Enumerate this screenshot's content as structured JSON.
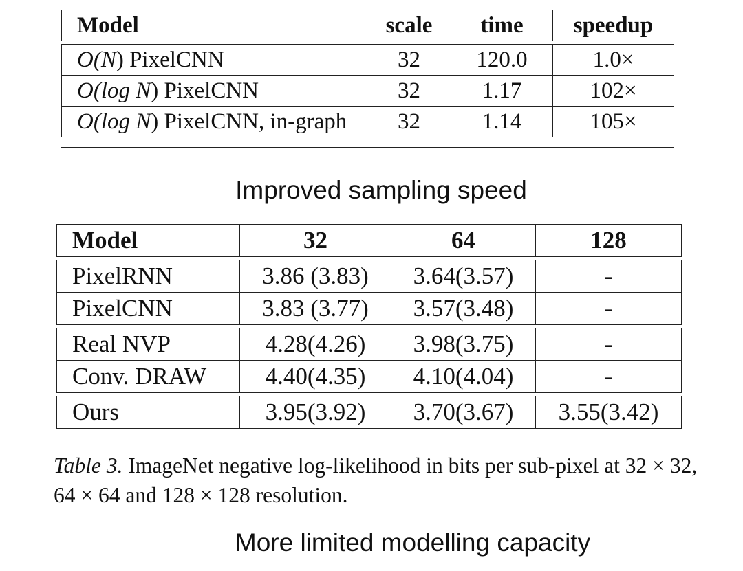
{
  "speed_table": {
    "headers": [
      "Model",
      "scale",
      "time",
      "speedup"
    ],
    "rows": [
      {
        "model_prefix": "O(",
        "model_var": "N",
        "model_suffix": ") PixelCNN",
        "scale": "32",
        "time": "120.0",
        "speedup": "1.0×"
      },
      {
        "model_prefix": "O(log ",
        "model_var": "N",
        "model_suffix": ") PixelCNN",
        "scale": "32",
        "time": "1.17",
        "speedup": "102×"
      },
      {
        "model_prefix": "O(log ",
        "model_var": "N",
        "model_suffix": ") PixelCNN, in-graph",
        "scale": "32",
        "time": "1.14",
        "speedup": "105×"
      }
    ]
  },
  "caption_speed": "Improved sampling speed",
  "nll_table": {
    "headers": [
      "Model",
      "32",
      "64",
      "128"
    ],
    "groups": [
      [
        {
          "model": "PixelRNN",
          "v32": "3.86 (3.83)",
          "v64": "3.64(3.57)",
          "v128": "-"
        },
        {
          "model": "PixelCNN",
          "v32": "3.83 (3.77)",
          "v64": "3.57(3.48)",
          "v128": "-"
        }
      ],
      [
        {
          "model": "Real NVP",
          "v32": "4.28(4.26)",
          "v64": "3.98(3.75)",
          "v128": "-"
        },
        {
          "model": "Conv. DRAW",
          "v32": "4.40(4.35)",
          "v64": "4.10(4.04)",
          "v128": "-"
        }
      ],
      [
        {
          "model": "Ours",
          "v32": "3.95(3.92)",
          "v64": "3.70(3.67)",
          "v128": "3.55(3.42)"
        }
      ]
    ]
  },
  "table_caption": {
    "label": "Table 3.",
    "text": " ImageNet negative log-likelihood in bits per sub-pixel at 32 × 32, 64 × 64 and 128 × 128 resolution."
  },
  "caption_capacity": "More limited modelling capacity"
}
